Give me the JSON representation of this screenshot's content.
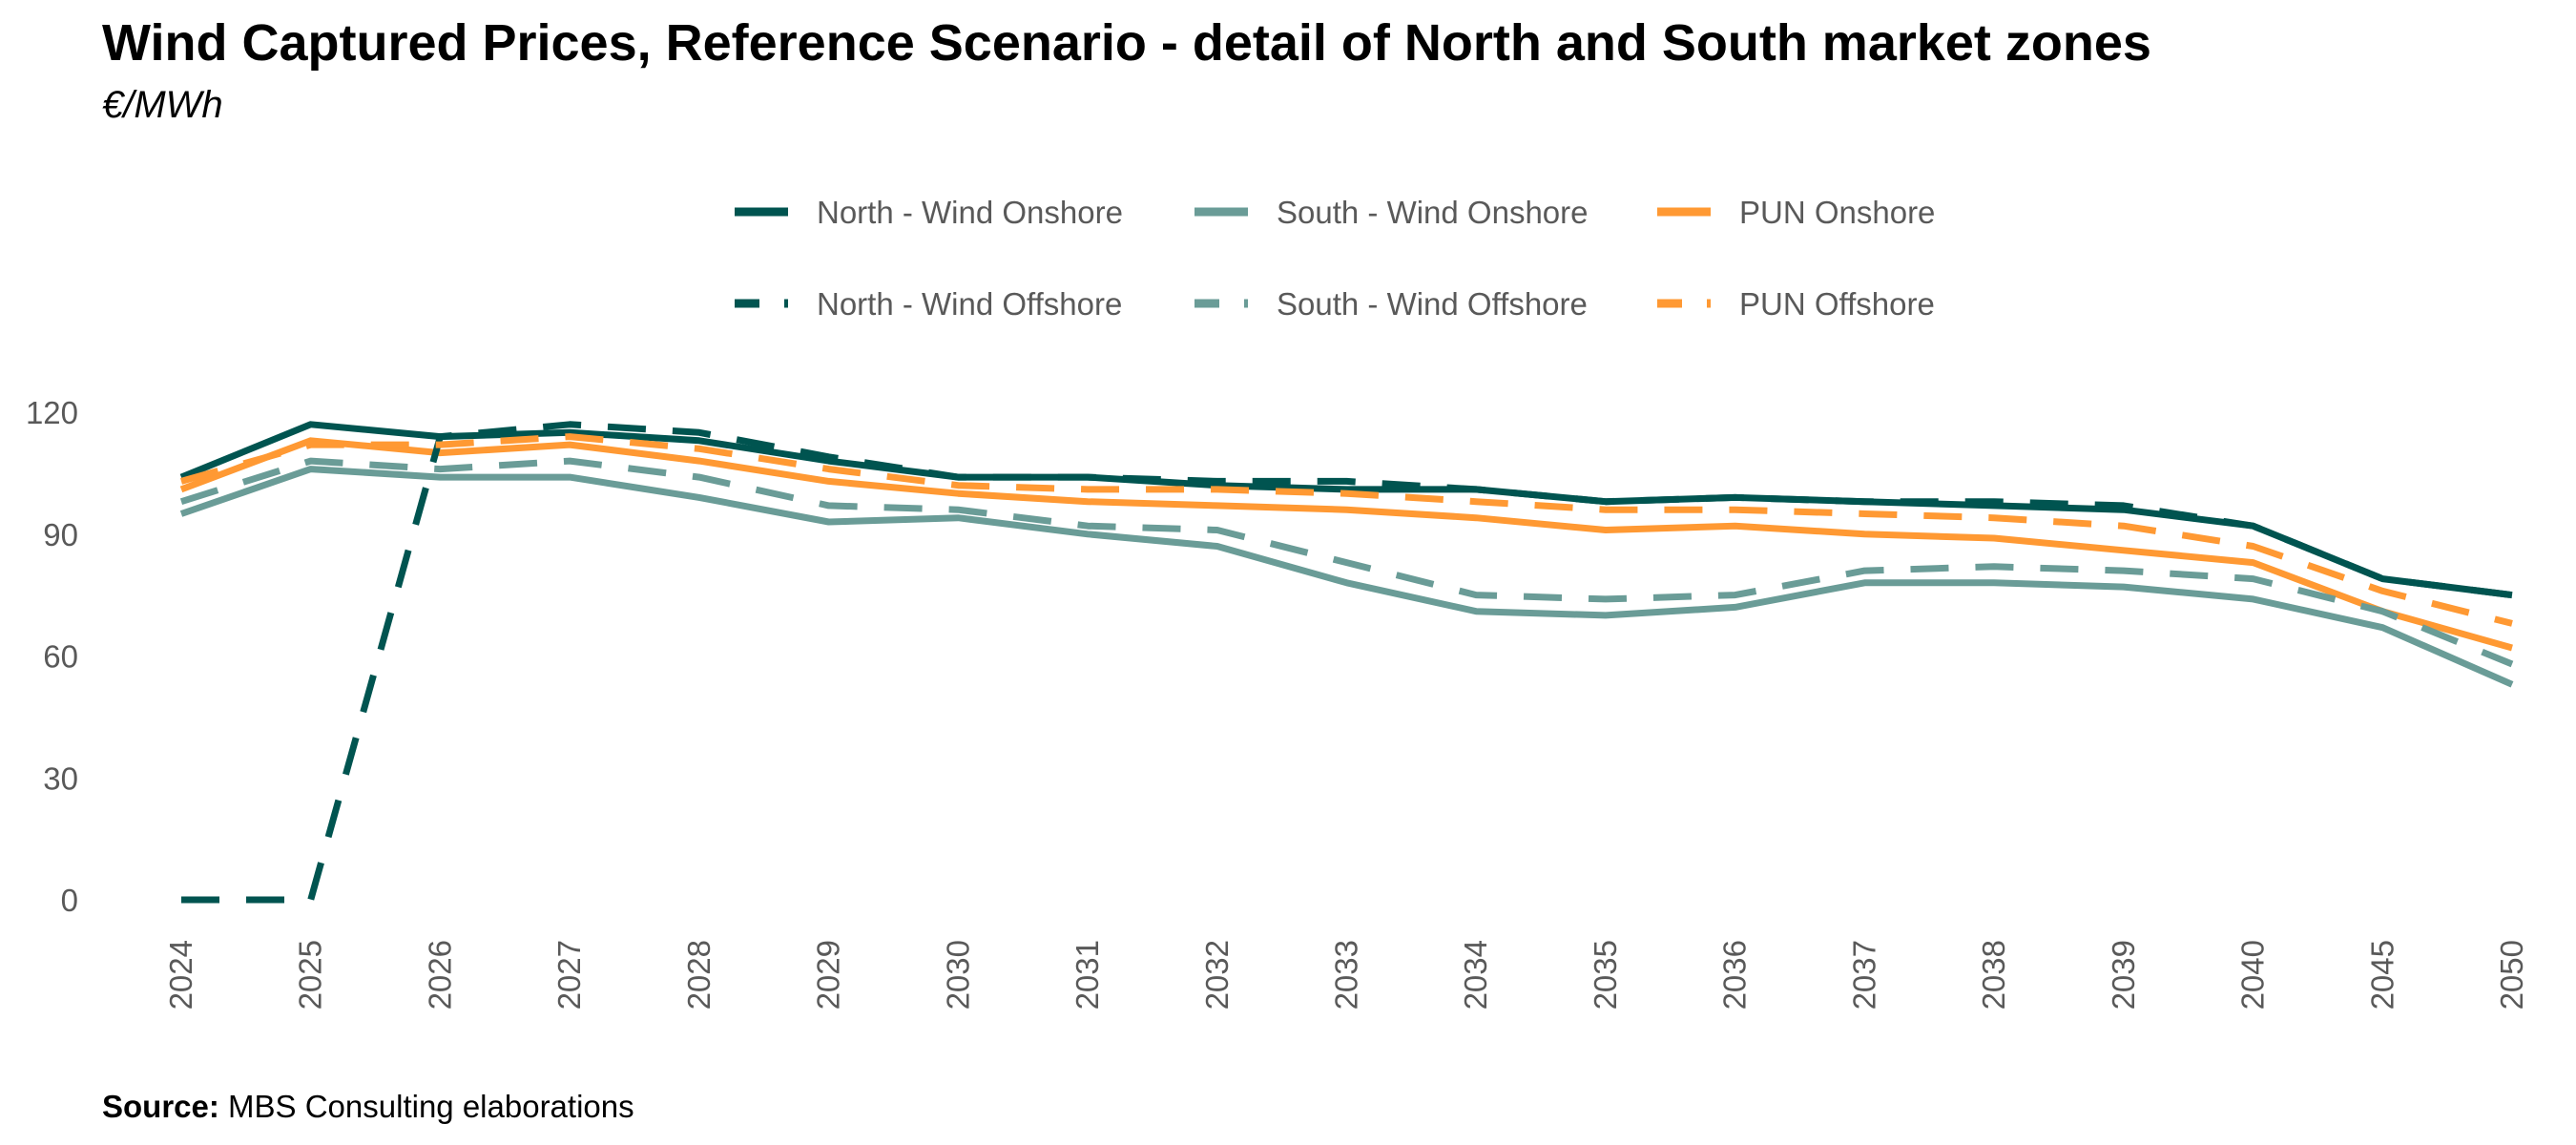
{
  "header": {
    "title": "Wind Captured Prices, Reference Scenario - detail of North and South market zones",
    "subtitle": "€/MWh"
  },
  "footer": {
    "source_label": "Source:",
    "source_text": "MBS Consulting elaborations"
  },
  "chart_data": {
    "type": "line",
    "title": "Wind Captured Prices, Reference Scenario - detail of North and South market zones",
    "subtitle": "€/MWh",
    "xlabel": "",
    "ylabel": "",
    "categories": [
      "2024",
      "2025",
      "2026",
      "2027",
      "2028",
      "2029",
      "2030",
      "2031",
      "2032",
      "2033",
      "2034",
      "2035",
      "2036",
      "2037",
      "2038",
      "2039",
      "2040",
      "2045",
      "2050"
    ],
    "ylim": [
      0,
      120
    ],
    "yticks": [
      0,
      30,
      60,
      90,
      120
    ],
    "grid": false,
    "legend_position": "top-center",
    "series": [
      {
        "name": "North - Wind Onshore",
        "color": "#005450",
        "dash": "solid",
        "values": [
          104,
          117,
          114,
          115,
          113,
          108,
          104,
          104,
          102,
          101,
          101,
          98,
          99,
          98,
          97,
          96,
          92,
          79,
          75
        ]
      },
      {
        "name": "South - Wind Onshore",
        "color": "#6A9C97",
        "dash": "solid",
        "values": [
          95,
          106,
          104,
          104,
          99,
          93,
          94,
          90,
          87,
          78,
          71,
          70,
          72,
          78,
          78,
          77,
          74,
          67,
          53
        ]
      },
      {
        "name": "PUN Onshore",
        "color": "#FF9933",
        "dash": "solid",
        "values": [
          101,
          113,
          110,
          112,
          108,
          103,
          100,
          98,
          97,
          96,
          94,
          91,
          92,
          90,
          89,
          86,
          83,
          71,
          62
        ]
      },
      {
        "name": "North - Wind Offshore",
        "color": "#005450",
        "dash": "dashed",
        "values": [
          0,
          0,
          114,
          117,
          115,
          109,
          104,
          104,
          103,
          103,
          101,
          98,
          99,
          98,
          98,
          97,
          92,
          79,
          75
        ]
      },
      {
        "name": "South - Wind Offshore",
        "color": "#6A9C97",
        "dash": "dashed",
        "values": [
          98,
          108,
          106,
          108,
          104,
          97,
          96,
          92,
          91,
          83,
          75,
          74,
          75,
          81,
          82,
          81,
          79,
          71,
          58
        ]
      },
      {
        "name": "PUN Offshore",
        "color": "#FF9933",
        "dash": "dashed",
        "values": [
          103,
          112,
          112,
          114,
          111,
          106,
          102,
          101,
          101,
          100,
          98,
          96,
          96,
          95,
          94,
          92,
          87,
          76,
          68
        ]
      }
    ]
  }
}
